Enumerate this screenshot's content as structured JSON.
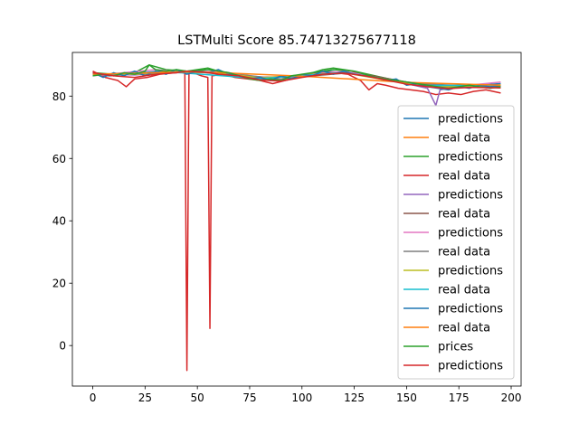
{
  "chart_data": {
    "type": "line",
    "title": "LSTMulti Score 85.74713275677118",
    "xlabel": "",
    "ylabel": "",
    "xlim": [
      -9.75,
      204.75
    ],
    "ylim": [
      -13,
      94
    ],
    "x_ticks": [
      0,
      25,
      50,
      75,
      100,
      125,
      150,
      175,
      200
    ],
    "y_ticks": [
      0,
      20,
      40,
      60,
      80
    ],
    "grid": false,
    "legend_position": "lower-right",
    "series": [
      {
        "name": "predictions",
        "color": "#1f77b4",
        "x": [
          0,
          8,
          16,
          24,
          32,
          40,
          48,
          56,
          64,
          72,
          80,
          88,
          96,
          104,
          112,
          120,
          128,
          136,
          144,
          152,
          160,
          168,
          176,
          184,
          195
        ],
        "y": [
          87,
          86.5,
          87,
          87.5,
          88,
          87.5,
          88,
          88.5,
          87,
          86,
          85.5,
          85,
          86,
          87,
          88,
          87.5,
          87,
          86,
          85,
          84,
          83,
          82.5,
          83,
          83.5,
          84
        ]
      },
      {
        "name": "real data",
        "color": "#ff7f0e",
        "x": [
          0,
          10,
          20,
          30,
          40,
          50,
          60,
          70,
          80,
          90,
          100,
          110,
          120,
          130,
          140,
          150,
          160,
          170,
          180,
          195
        ],
        "y": [
          87,
          86.8,
          87,
          87.6,
          87.8,
          88,
          87.5,
          86.5,
          85.5,
          85.2,
          86.5,
          87.5,
          87.8,
          86.8,
          85.5,
          84.2,
          83.5,
          82.8,
          83.2,
          83.5
        ]
      },
      {
        "name": "predictions",
        "color": "#2ca02c",
        "x": [
          0,
          10,
          20,
          27,
          35,
          45,
          55,
          65,
          75,
          85,
          95,
          105,
          115,
          125,
          135,
          145,
          155,
          165,
          175,
          185,
          195
        ],
        "y": [
          87.5,
          87,
          87.5,
          90,
          88.5,
          88,
          88.5,
          87.5,
          86,
          85,
          86,
          87.5,
          88.5,
          88,
          86.5,
          85,
          84,
          83,
          83.5,
          83.5,
          83
        ]
      },
      {
        "name": "real data",
        "color": "#d62728",
        "x": [
          0,
          6,
          12,
          16,
          20,
          26,
          32,
          40,
          44,
          45,
          46,
          52,
          55,
          56,
          57,
          62,
          68,
          74,
          80,
          86,
          92,
          98,
          104,
          110,
          116,
          122,
          128,
          132,
          136,
          140,
          146,
          152,
          158,
          164,
          170,
          176,
          182,
          188,
          195
        ],
        "y": [
          88,
          86,
          85,
          83,
          85.5,
          86,
          87,
          87.5,
          88,
          -8,
          88,
          86.5,
          86,
          5.5,
          86.5,
          87,
          86,
          85.5,
          85,
          84,
          85,
          86,
          86.5,
          87,
          87.5,
          87,
          85,
          82,
          84,
          83.5,
          82.5,
          82,
          81.5,
          80.5,
          81,
          80.5,
          81.5,
          82,
          81
        ]
      },
      {
        "name": "predictions",
        "color": "#9467bd",
        "x": [
          0,
          20,
          40,
          60,
          80,
          100,
          120,
          140,
          150,
          160,
          164,
          166,
          170,
          180,
          195
        ],
        "y": [
          87,
          86.8,
          87.5,
          87.8,
          86,
          86.5,
          87.8,
          85.5,
          84,
          82.5,
          77,
          82,
          82.5,
          82.8,
          83
        ]
      },
      {
        "name": "real data",
        "color": "#8c564b",
        "x": [
          0,
          25,
          50,
          75,
          100,
          125,
          150,
          175,
          195
        ],
        "y": [
          87,
          87.2,
          87.8,
          86,
          86.2,
          87.6,
          84.5,
          83,
          83.2
        ]
      },
      {
        "name": "predictions",
        "color": "#e377c2",
        "x": [
          0,
          15,
          30,
          45,
          60,
          75,
          90,
          105,
          120,
          135,
          150,
          165,
          180,
          195
        ],
        "y": [
          86.5,
          87.5,
          88.5,
          87.5,
          88,
          86.5,
          85.5,
          87,
          88,
          86,
          84.5,
          83,
          83.5,
          84.5
        ]
      },
      {
        "name": "real data",
        "color": "#7f7f7f",
        "x": [
          0,
          30,
          60,
          90,
          120,
          150,
          180,
          195
        ],
        "y": [
          87,
          87.5,
          87.6,
          85.5,
          87.6,
          84.2,
          83.2,
          83.4
        ]
      },
      {
        "name": "predictions",
        "color": "#bcbd22",
        "x": [
          0,
          20,
          40,
          60,
          80,
          100,
          120,
          140,
          160,
          180,
          195
        ],
        "y": [
          87.2,
          87,
          87.8,
          87.5,
          85.8,
          86.8,
          87.5,
          85.2,
          83.2,
          83,
          83.6
        ]
      },
      {
        "name": "real data",
        "color": "#17becf",
        "x": [
          0,
          40,
          80,
          120,
          160,
          195
        ],
        "y": [
          87,
          87.6,
          85.6,
          87.6,
          83.4,
          83.4
        ]
      },
      {
        "name": "predictions",
        "color": "#1f77b4",
        "x": [
          0,
          5,
          10,
          15,
          20,
          25,
          30,
          35,
          40,
          45,
          50,
          55,
          60,
          65,
          70,
          75,
          80,
          85,
          90,
          95,
          100,
          105,
          110,
          115,
          120,
          125,
          130,
          135,
          140,
          145,
          150,
          155,
          160,
          165,
          170,
          175,
          180,
          185,
          190,
          195
        ],
        "y": [
          87.5,
          86,
          87.5,
          86.5,
          88,
          86.5,
          88,
          87,
          88.5,
          87,
          88,
          87.5,
          88.5,
          87,
          86.5,
          85.5,
          86,
          85,
          86.5,
          85.5,
          87,
          86.5,
          88,
          87,
          88,
          87,
          86.5,
          86,
          85,
          85.5,
          83.5,
          84,
          83,
          82.5,
          82,
          83,
          82.5,
          83.5,
          83,
          83.5
        ]
      },
      {
        "name": "real data",
        "color": "#ff7f0e",
        "x": [
          0,
          50,
          100,
          150,
          195
        ],
        "y": [
          87,
          87.8,
          86.4,
          84.4,
          83.5
        ]
      },
      {
        "name": "prices",
        "color": "#2ca02c",
        "x": [
          0,
          5,
          10,
          15,
          20,
          25,
          27,
          30,
          35,
          40,
          45,
          50,
          55,
          60,
          65,
          70,
          75,
          80,
          85,
          90,
          95,
          100,
          105,
          110,
          115,
          120,
          125,
          130,
          135,
          140,
          145,
          150,
          155,
          160,
          165,
          170,
          175,
          180,
          185,
          190,
          195
        ],
        "y": [
          86.5,
          87,
          86.5,
          87.5,
          87,
          88,
          90,
          88.5,
          88,
          88.5,
          88,
          88.5,
          89,
          88,
          87.5,
          86.5,
          85.5,
          85,
          85.5,
          85,
          86.5,
          87,
          87.5,
          88.5,
          89,
          88.5,
          88,
          87,
          86,
          85.5,
          85,
          84.5,
          84,
          83.5,
          83,
          82.5,
          83,
          83.5,
          83,
          82.5,
          83
        ]
      },
      {
        "name": "predictions",
        "color": "#d62728",
        "x": [
          0,
          10,
          20,
          30,
          40,
          45,
          50,
          56,
          60,
          70,
          80,
          90,
          100,
          110,
          120,
          130,
          140,
          150,
          160,
          170,
          180,
          195
        ],
        "y": [
          87.5,
          86.5,
          86,
          87,
          87.5,
          88,
          87.8,
          87.5,
          87,
          86.5,
          85.2,
          84.8,
          86,
          87,
          87.4,
          86.5,
          85.2,
          83.8,
          83,
          82.4,
          82.8,
          82.6
        ]
      }
    ]
  }
}
